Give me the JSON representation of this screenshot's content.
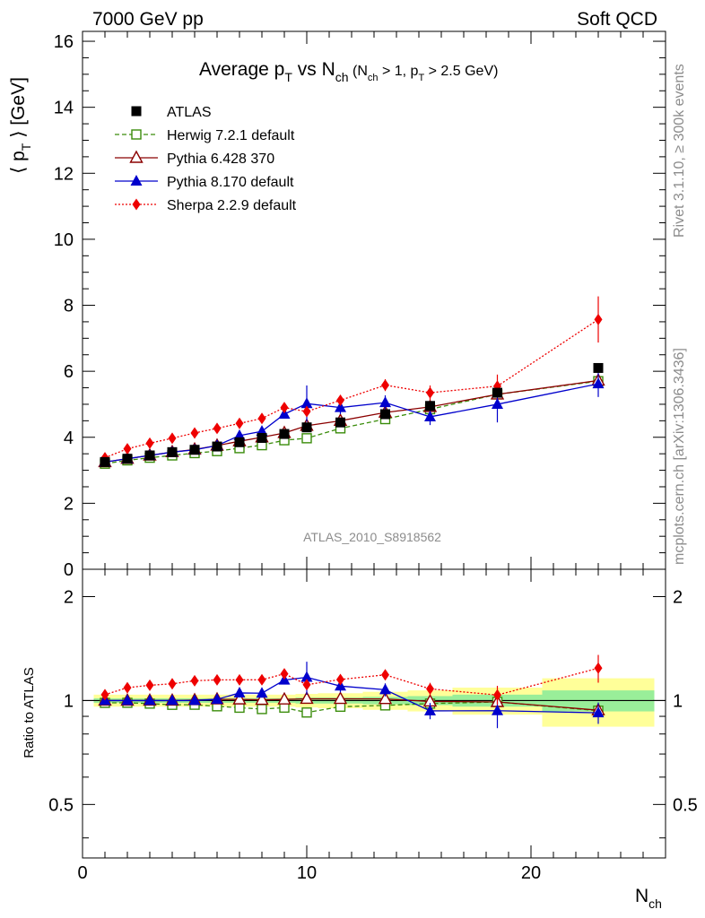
{
  "header": {
    "left": "7000 GeV pp",
    "right": "Soft QCD"
  },
  "plot_title": {
    "main": "Average p",
    "sub_t": "T",
    "vs": " vs N",
    "sub_ch": "ch",
    "cuts_open": " (N",
    "cuts_ch": "ch",
    "cuts_mid": " > 1, p",
    "cuts_t": "T",
    "cuts_end": " > 2.5 GeV)"
  },
  "y_axis_label": {
    "open": "⟨ p",
    "sub": "T",
    "close": " ⟩  [GeV]"
  },
  "ratio_axis_label": "Ratio to ATLAS",
  "x_axis_label": {
    "main": "N",
    "sub": "ch"
  },
  "analysis_id": "ATLAS_2010_S8918562",
  "side_text": {
    "rivet": "Rivet 3.1.10, ≥ 300k events",
    "mcplots": "mcplots.cern.ch [arXiv:1306.3436]"
  },
  "legend": [
    {
      "name": "ATLAS",
      "color": "#000000",
      "marker": "square-filled",
      "dash": "none"
    },
    {
      "name": "Herwig 7.2.1 default",
      "color": "#3a8c0a",
      "marker": "square-open",
      "dash": "5,3"
    },
    {
      "name": "Pythia 6.428 370",
      "color": "#8b0000",
      "marker": "triangle-open",
      "dash": "none"
    },
    {
      "name": "Pythia 8.170 default",
      "color": "#0000cc",
      "marker": "triangle-filled",
      "dash": "none"
    },
    {
      "name": "Sherpa 2.2.9 default",
      "color": "#ee0000",
      "marker": "diamond-filled",
      "dash": "2,2"
    }
  ],
  "chart_data": {
    "type": "line",
    "xlabel": "N_ch",
    "ylabel": "<pT> [GeV]",
    "xlim": [
      0,
      26
    ],
    "ylim": [
      0,
      16.3
    ],
    "ratio_ylim": [
      0.35,
      2.4
    ],
    "ratio_scale": "log",
    "x_ticks": [
      "0",
      "10",
      "20"
    ],
    "y_ticks": [
      "0",
      "2",
      "4",
      "6",
      "8",
      "10",
      "12",
      "14",
      "16"
    ],
    "ratio_ticks": [
      "0.5",
      "1",
      "2"
    ],
    "x": [
      1,
      2,
      3,
      4,
      5,
      6,
      7,
      8,
      9,
      10,
      11.5,
      13.5,
      15.5,
      18.5,
      23
    ],
    "bins": [
      [
        0.5,
        1.5
      ],
      [
        1.5,
        2.5
      ],
      [
        2.5,
        3.5
      ],
      [
        3.5,
        4.5
      ],
      [
        4.5,
        5.5
      ],
      [
        5.5,
        6.5
      ],
      [
        6.5,
        7.5
      ],
      [
        7.5,
        8.5
      ],
      [
        8.5,
        9.5
      ],
      [
        9.5,
        10.5
      ],
      [
        10.5,
        12.5
      ],
      [
        12.5,
        14.5
      ],
      [
        14.5,
        16.5
      ],
      [
        16.5,
        20.5
      ],
      [
        20.5,
        25.5
      ]
    ],
    "band_stat": [
      0.015,
      0.015,
      0.015,
      0.015,
      0.015,
      0.015,
      0.015,
      0.015,
      0.015,
      0.02,
      0.02,
      0.025,
      0.03,
      0.04,
      0.07
    ],
    "band_tot": [
      0.04,
      0.04,
      0.04,
      0.04,
      0.04,
      0.04,
      0.04,
      0.04,
      0.04,
      0.045,
      0.05,
      0.06,
      0.07,
      0.09,
      0.16
    ],
    "series": [
      {
        "name": "ATLAS",
        "values": [
          3.25,
          3.35,
          3.45,
          3.55,
          3.62,
          3.72,
          3.85,
          3.98,
          4.1,
          4.3,
          4.45,
          4.7,
          4.95,
          5.35,
          6.1
        ],
        "err": [
          0,
          0,
          0,
          0,
          0,
          0,
          0,
          0,
          0,
          0,
          0,
          0,
          0,
          0,
          0
        ]
      },
      {
        "name": "Herwig 7.2.1 default",
        "values": [
          3.2,
          3.3,
          3.38,
          3.45,
          3.52,
          3.58,
          3.67,
          3.76,
          3.91,
          3.97,
          4.27,
          4.55,
          4.85,
          5.3,
          5.7
        ],
        "err": [
          0,
          0,
          0,
          0,
          0,
          0,
          0,
          0,
          0,
          0,
          0,
          0,
          0,
          0,
          0
        ]
      },
      {
        "name": "Pythia 6.428 370",
        "values": [
          3.25,
          3.35,
          3.45,
          3.55,
          3.63,
          3.75,
          3.88,
          4.0,
          4.13,
          4.35,
          4.5,
          4.75,
          4.92,
          5.3,
          5.72
        ],
        "err": [
          0,
          0,
          0,
          0,
          0,
          0,
          0,
          0,
          0,
          0,
          0,
          0,
          0,
          0,
          0
        ]
      },
      {
        "name": "Pythia 8.170 default",
        "values": [
          3.25,
          3.35,
          3.45,
          3.55,
          3.62,
          3.75,
          4.05,
          4.18,
          4.7,
          5.02,
          4.9,
          5.05,
          4.62,
          5.0,
          5.62
        ],
        "err": [
          0.05,
          0.05,
          0.05,
          0.05,
          0.05,
          0.05,
          0.08,
          0.1,
          0.12,
          0.55,
          0.2,
          0.22,
          0.25,
          0.55,
          0.4
        ]
      },
      {
        "name": "Sherpa 2.2.9 default",
        "values": [
          3.38,
          3.65,
          3.82,
          3.97,
          4.13,
          4.27,
          4.42,
          4.57,
          4.9,
          4.78,
          5.12,
          5.58,
          5.35,
          5.55,
          7.57
        ],
        "err": [
          0.05,
          0.05,
          0.05,
          0.05,
          0.05,
          0.05,
          0.06,
          0.06,
          0.08,
          0.15,
          0.12,
          0.18,
          0.22,
          0.35,
          0.7
        ]
      }
    ]
  }
}
